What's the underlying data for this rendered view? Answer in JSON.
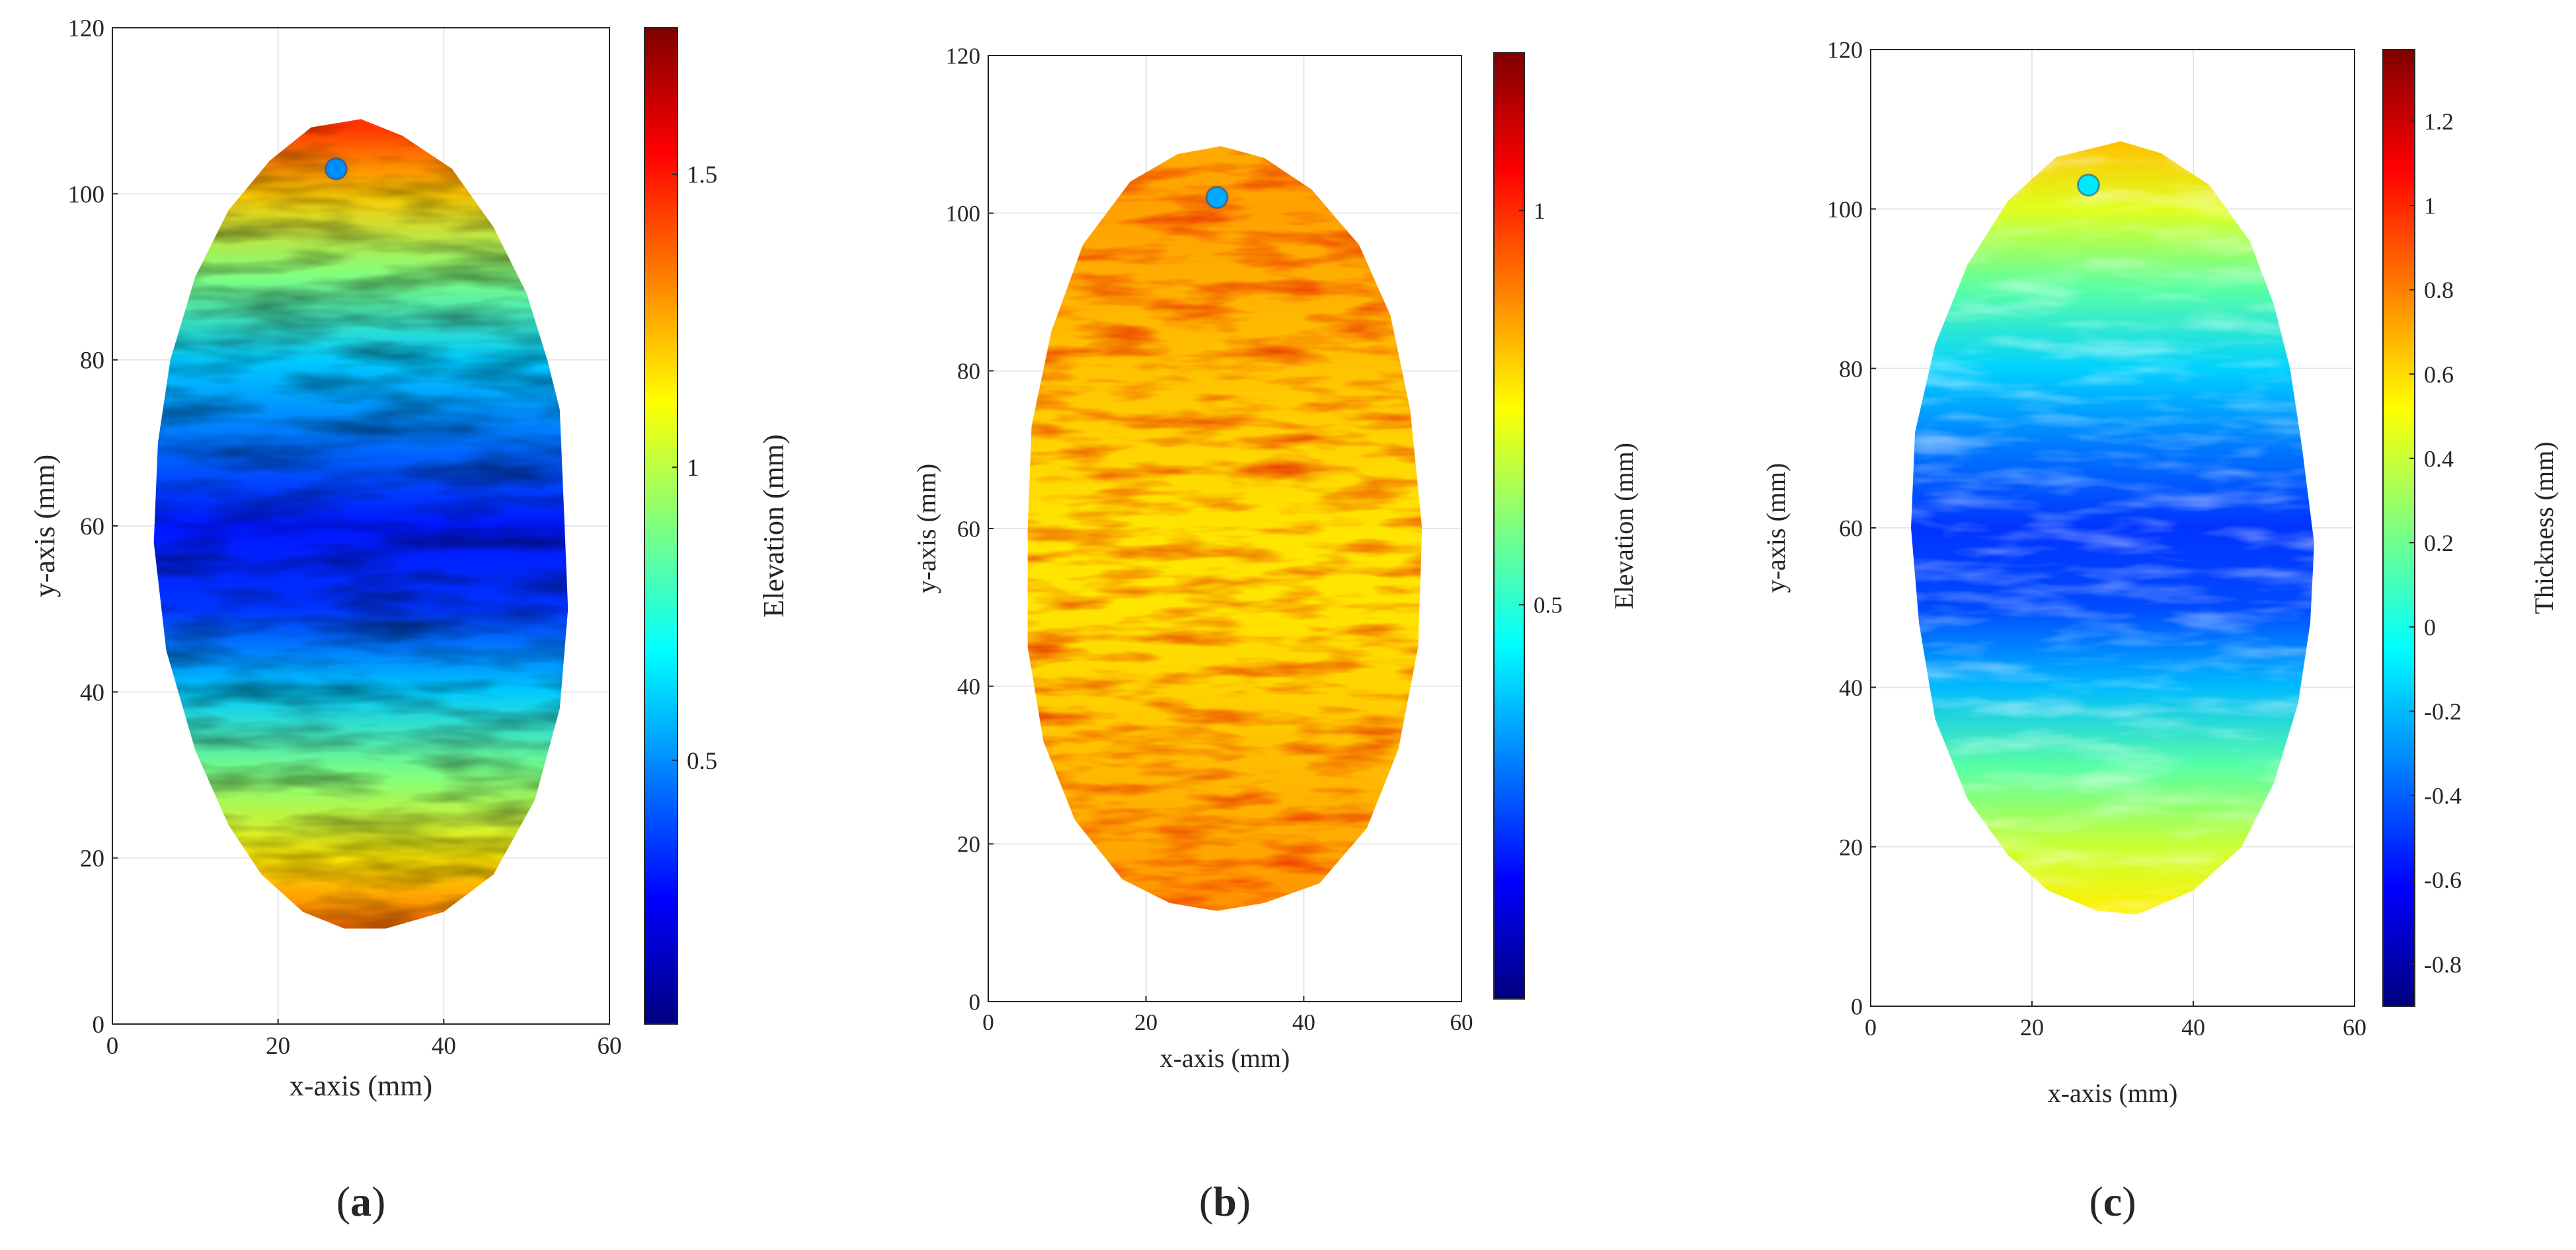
{
  "colormap": [
    "#00007f",
    "#0000ff",
    "#007fff",
    "#00ffff",
    "#7fff7f",
    "#ffff00",
    "#ff7f00",
    "#ff0000",
    "#7f0000"
  ],
  "chart_data": [
    {
      "type": "heatmap",
      "panel_label": "(a)",
      "xlabel": "x-axis (mm)",
      "ylabel": "y-axis (mm)",
      "colorbar_label": "Elevation (mm)",
      "xlim": [
        0,
        60
      ],
      "ylim": [
        0,
        120
      ],
      "xticks": [
        0,
        20,
        40,
        60
      ],
      "yticks": [
        0,
        20,
        40,
        60,
        80,
        100,
        120
      ],
      "grid": true,
      "color_range": [
        0.05,
        1.75
      ],
      "colorbar_ticks": [
        0.5,
        1,
        1.5
      ],
      "colorbar_tick_labels": [
        "0.5",
        "1",
        "1.5"
      ],
      "outline": [
        [
          30,
          109
        ],
        [
          35,
          107
        ],
        [
          41,
          103
        ],
        [
          46,
          96
        ],
        [
          50,
          88
        ],
        [
          52.5,
          80
        ],
        [
          54,
          74
        ],
        [
          54.5,
          62
        ],
        [
          55,
          50
        ],
        [
          54,
          38
        ],
        [
          51,
          27
        ],
        [
          46,
          18
        ],
        [
          40,
          13.5
        ],
        [
          33,
          11.5
        ],
        [
          28,
          11.5
        ],
        [
          23,
          13.5
        ],
        [
          18,
          18
        ],
        [
          14,
          24
        ],
        [
          10,
          33
        ],
        [
          6.5,
          45
        ],
        [
          5,
          58
        ],
        [
          5.5,
          70
        ],
        [
          7,
          80
        ],
        [
          10,
          90
        ],
        [
          14,
          98
        ],
        [
          19,
          104
        ],
        [
          24,
          108
        ]
      ],
      "profile": [
        [
          12,
          1.35
        ],
        [
          20,
          1.15
        ],
        [
          30,
          0.9
        ],
        [
          40,
          0.6
        ],
        [
          50,
          0.35
        ],
        [
          60,
          0.3
        ],
        [
          70,
          0.45
        ],
        [
          80,
          0.6
        ],
        [
          90,
          0.9
        ],
        [
          100,
          1.2
        ],
        [
          108,
          1.45
        ]
      ],
      "feature": {
        "x": 27,
        "y": 103,
        "value": 0.5
      }
    },
    {
      "type": "heatmap",
      "panel_label": "(b)",
      "xlabel": "x-axis (mm)",
      "ylabel": "y-axis (mm)",
      "colorbar_label": "Elevation (mm)",
      "xlim": [
        0,
        60
      ],
      "ylim": [
        0,
        120
      ],
      "xticks": [
        0,
        20,
        40,
        60
      ],
      "yticks": [
        0,
        20,
        40,
        60,
        80,
        100,
        120
      ],
      "grid": true,
      "color_range": [
        0,
        1.2
      ],
      "colorbar_ticks": [
        0.5,
        1
      ],
      "colorbar_tick_labels": [
        "0.5",
        "1"
      ],
      "outline": [
        [
          29.5,
          108.5
        ],
        [
          35,
          107
        ],
        [
          41,
          103
        ],
        [
          47,
          96
        ],
        [
          51,
          87
        ],
        [
          53.5,
          75
        ],
        [
          55,
          60
        ],
        [
          54.5,
          45
        ],
        [
          52,
          32
        ],
        [
          48,
          22
        ],
        [
          42,
          15
        ],
        [
          35,
          12.5
        ],
        [
          29,
          11.5
        ],
        [
          23,
          12.5
        ],
        [
          17,
          15.5
        ],
        [
          11,
          23
        ],
        [
          7,
          33
        ],
        [
          5,
          45
        ],
        [
          5,
          60
        ],
        [
          5.5,
          73
        ],
        [
          8,
          85
        ],
        [
          12,
          96
        ],
        [
          18,
          104
        ],
        [
          24,
          107.5
        ]
      ],
      "profile": [
        [
          12,
          0.88
        ],
        [
          20,
          0.85
        ],
        [
          30,
          0.83
        ],
        [
          40,
          0.8
        ],
        [
          50,
          0.78
        ],
        [
          60,
          0.78
        ],
        [
          70,
          0.8
        ],
        [
          80,
          0.82
        ],
        [
          90,
          0.84
        ],
        [
          100,
          0.86
        ],
        [
          108,
          0.85
        ]
      ],
      "feature": {
        "x": 29,
        "y": 102,
        "value": 0.35
      }
    },
    {
      "type": "heatmap",
      "panel_label": "(c)",
      "xlabel": "x-axis (mm)",
      "ylabel": "y-axis (mm)",
      "colorbar_label": "Thickness (mm)",
      "xlim": [
        0,
        60
      ],
      "ylim": [
        0,
        120
      ],
      "xticks": [
        0,
        20,
        40,
        60
      ],
      "yticks": [
        0,
        20,
        40,
        60,
        80,
        100,
        120
      ],
      "grid": true,
      "color_range": [
        -0.9,
        1.37
      ],
      "colorbar_ticks": [
        -0.8,
        -0.6,
        -0.4,
        -0.2,
        0,
        0.2,
        0.4,
        0.6,
        0.8,
        1,
        1.2
      ],
      "colorbar_tick_labels": [
        "-0.8",
        "-0.6",
        "-0.4",
        "-0.2",
        "0",
        "0.2",
        "0.4",
        "0.6",
        "0.8",
        "1",
        "1.2"
      ],
      "outline": [
        [
          31,
          108.5
        ],
        [
          36,
          107
        ],
        [
          42,
          103
        ],
        [
          47,
          96
        ],
        [
          50,
          88
        ],
        [
          52,
          80
        ],
        [
          53.5,
          70
        ],
        [
          55,
          58
        ],
        [
          54.5,
          48
        ],
        [
          53,
          38
        ],
        [
          50,
          28
        ],
        [
          46,
          20
        ],
        [
          40,
          14.5
        ],
        [
          33,
          11.5
        ],
        [
          28,
          12
        ],
        [
          22,
          14.5
        ],
        [
          17,
          19
        ],
        [
          12,
          26
        ],
        [
          8,
          36
        ],
        [
          6,
          48
        ],
        [
          5,
          60
        ],
        [
          5.5,
          72
        ],
        [
          8,
          83
        ],
        [
          12,
          93
        ],
        [
          17,
          101
        ],
        [
          23,
          106.5
        ]
      ],
      "profile": [
        [
          12,
          0.55
        ],
        [
          20,
          0.4
        ],
        [
          30,
          0.15
        ],
        [
          40,
          -0.2
        ],
        [
          50,
          -0.45
        ],
        [
          60,
          -0.5
        ],
        [
          70,
          -0.35
        ],
        [
          80,
          -0.15
        ],
        [
          90,
          0.15
        ],
        [
          100,
          0.45
        ],
        [
          108,
          0.65
        ]
      ],
      "feature": {
        "x": 27,
        "y": 103,
        "value": -0.1
      }
    }
  ]
}
